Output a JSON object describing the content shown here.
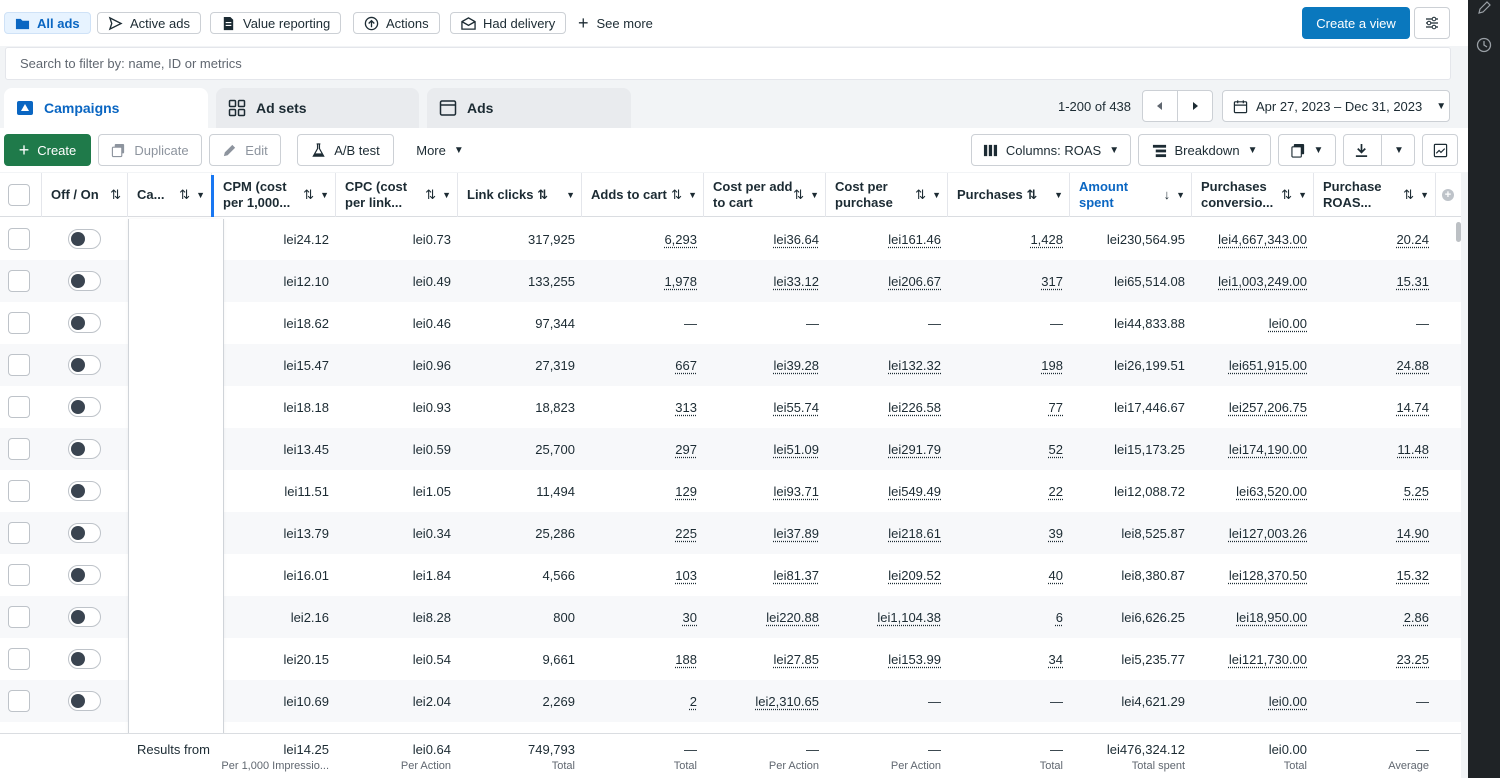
{
  "filters": [
    {
      "label": "All ads",
      "icon": "folder-icon",
      "active": true
    },
    {
      "label": "Active ads",
      "icon": "send-icon",
      "active": false
    },
    {
      "label": "Value reporting",
      "icon": "document-icon",
      "active": false
    },
    {
      "label": "Actions",
      "icon": "pointer-circle-icon",
      "active": false
    },
    {
      "label": "Had delivery",
      "icon": "envelope-icon",
      "active": false
    }
  ],
  "see_more": "See more",
  "create_view": "Create a view",
  "search_placeholder": "Search to filter by: name, ID or metrics",
  "tabs": [
    {
      "label": "Campaigns",
      "icon": "campaign-icon"
    },
    {
      "label": "Ad sets",
      "icon": "grid-icon"
    },
    {
      "label": "Ads",
      "icon": "ad-icon"
    }
  ],
  "pager": "1-200 of 438",
  "date_range": "Apr 27, 2023 – Dec 31, 2023",
  "actions": {
    "create": "Create",
    "duplicate": "Duplicate",
    "edit": "Edit",
    "ab_test": "A/B test",
    "more": "More",
    "columns": "Columns: ROAS",
    "breakdown": "Breakdown"
  },
  "columns": [
    {
      "label": "Off / On"
    },
    {
      "label": "Ca..."
    },
    {
      "label": "CPM (cost per 1,000..."
    },
    {
      "label": "CPC (cost per link..."
    },
    {
      "label": "Link clicks ⇅"
    },
    {
      "label": "Adds to cart"
    },
    {
      "label": "Cost per add to cart"
    },
    {
      "label": "Cost per purchase"
    },
    {
      "label": "Purchases ⇅"
    },
    {
      "label": "Amount spent"
    },
    {
      "label": "Purchases conversio..."
    },
    {
      "label": "Purchase ROAS..."
    }
  ],
  "rows": [
    [
      "lei24.12",
      "lei0.73",
      "317,925",
      "6,293",
      "lei36.64",
      "lei161.46",
      "1,428",
      "lei230,564.95",
      "lei4,667,343.00",
      "20.24"
    ],
    [
      "lei12.10",
      "lei0.49",
      "133,255",
      "1,978",
      "lei33.12",
      "lei206.67",
      "317",
      "lei65,514.08",
      "lei1,003,249.00",
      "15.31"
    ],
    [
      "lei18.62",
      "lei0.46",
      "97,344",
      "—",
      "—",
      "—",
      "—",
      "lei44,833.88",
      "lei0.00",
      "—"
    ],
    [
      "lei15.47",
      "lei0.96",
      "27,319",
      "667",
      "lei39.28",
      "lei132.32",
      "198",
      "lei26,199.51",
      "lei651,915.00",
      "24.88"
    ],
    [
      "lei18.18",
      "lei0.93",
      "18,823",
      "313",
      "lei55.74",
      "lei226.58",
      "77",
      "lei17,446.67",
      "lei257,206.75",
      "14.74"
    ],
    [
      "lei13.45",
      "lei0.59",
      "25,700",
      "297",
      "lei51.09",
      "lei291.79",
      "52",
      "lei15,173.25",
      "lei174,190.00",
      "11.48"
    ],
    [
      "lei11.51",
      "lei1.05",
      "11,494",
      "129",
      "lei93.71",
      "lei549.49",
      "22",
      "lei12,088.72",
      "lei63,520.00",
      "5.25"
    ],
    [
      "lei13.79",
      "lei0.34",
      "25,286",
      "225",
      "lei37.89",
      "lei218.61",
      "39",
      "lei8,525.87",
      "lei127,003.26",
      "14.90"
    ],
    [
      "lei16.01",
      "lei1.84",
      "4,566",
      "103",
      "lei81.37",
      "lei209.52",
      "40",
      "lei8,380.87",
      "lei128,370.50",
      "15.32"
    ],
    [
      "lei2.16",
      "lei8.28",
      "800",
      "30",
      "lei220.88",
      "lei1,104.38",
      "6",
      "lei6,626.25",
      "lei18,950.00",
      "2.86"
    ],
    [
      "lei20.15",
      "lei0.54",
      "9,661",
      "188",
      "lei27.85",
      "lei153.99",
      "34",
      "lei5,235.77",
      "lei121,730.00",
      "23.25"
    ],
    [
      "lei10.69",
      "lei2.04",
      "2,269",
      "2",
      "lei2,310.65",
      "—",
      "—",
      "lei4,621.29",
      "lei0.00",
      "—"
    ]
  ],
  "footer_label": "Results from",
  "footer": [
    {
      "value": "lei14.25",
      "sub": "Per 1,000 Impressio..."
    },
    {
      "value": "lei0.64",
      "sub": "Per Action"
    },
    {
      "value": "749,793",
      "sub": "Total"
    },
    {
      "value": "—",
      "sub": "Total"
    },
    {
      "value": "—",
      "sub": "Per Action"
    },
    {
      "value": "—",
      "sub": "Per Action"
    },
    {
      "value": "—",
      "sub": "Total"
    },
    {
      "value": "lei476,324.12",
      "sub": "Total spent"
    },
    {
      "value": "lei0.00",
      "sub": "Total"
    },
    {
      "value": "—",
      "sub": "Average"
    }
  ]
}
